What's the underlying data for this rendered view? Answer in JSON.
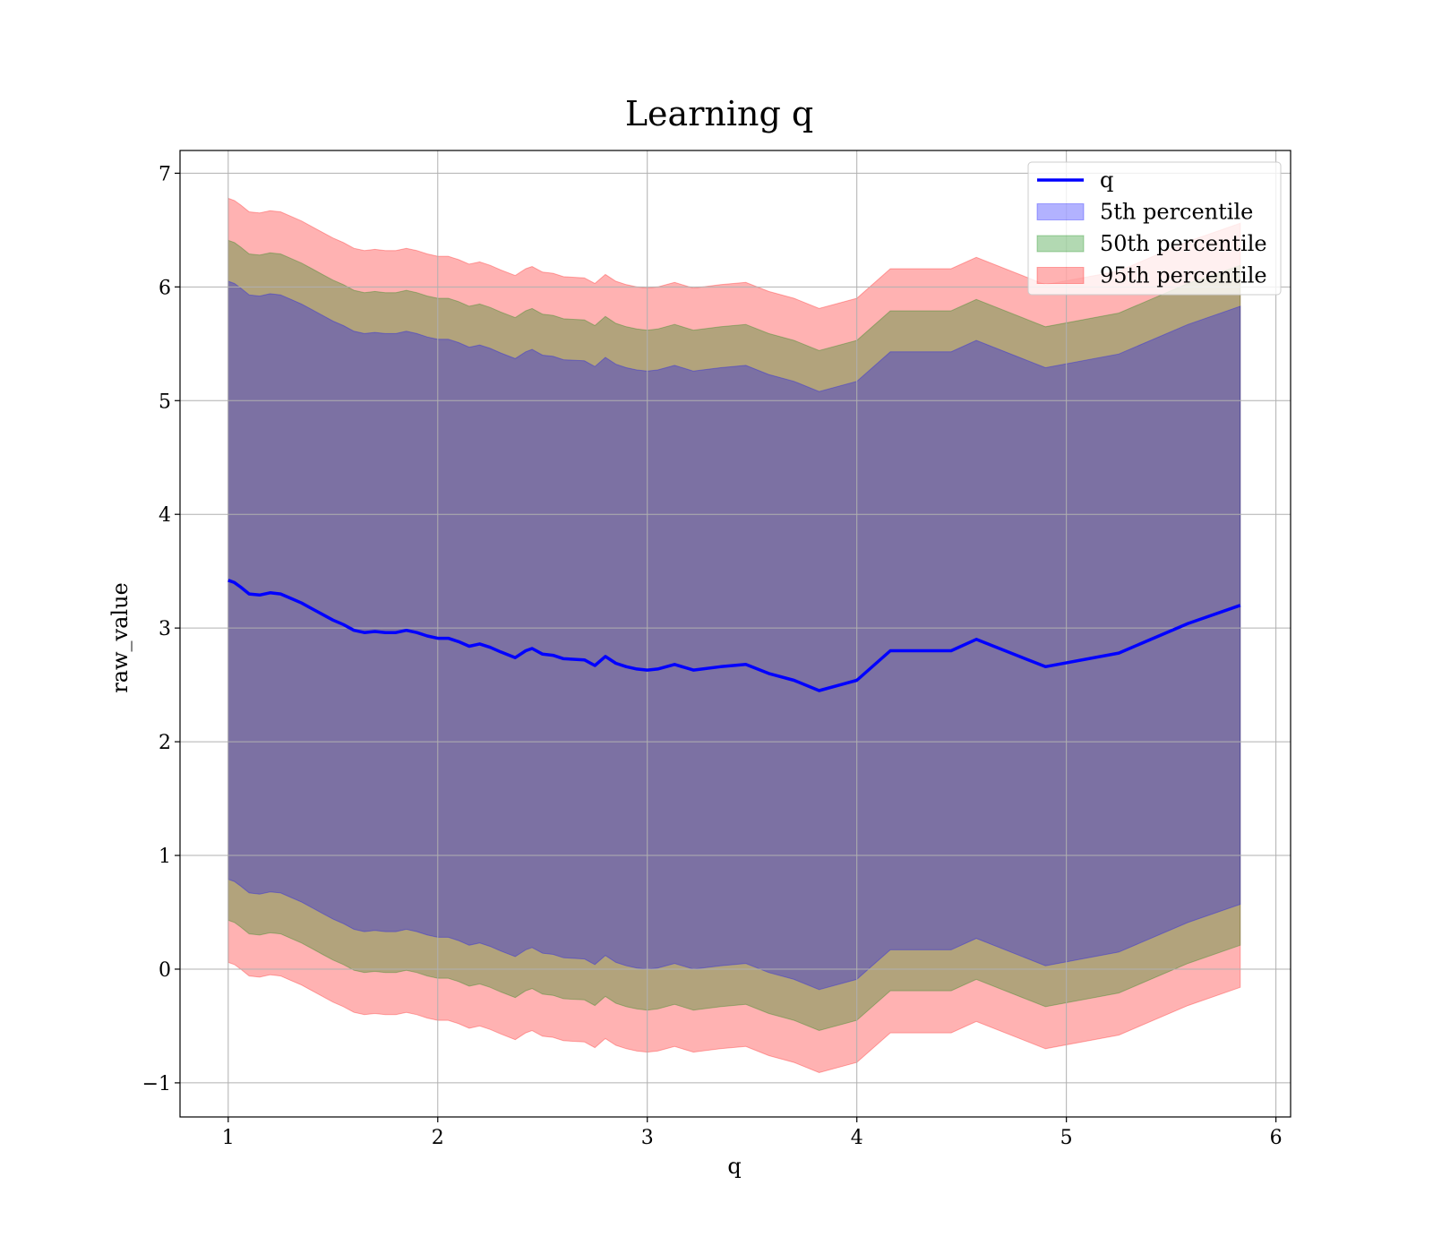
{
  "chart_data": {
    "type": "area",
    "title": "Learning q",
    "xlabel": "q",
    "ylabel": "raw_value",
    "xlim": [
      0.77,
      6.07
    ],
    "ylim": [
      -1.3,
      7.2
    ],
    "xticks": [
      1,
      2,
      3,
      4,
      5,
      6
    ],
    "yticks": [
      -1,
      0,
      1,
      2,
      3,
      4,
      5,
      6,
      7
    ],
    "grid": true,
    "legend_position": "top-right",
    "x": [
      1.0,
      1.03,
      1.06,
      1.1,
      1.15,
      1.2,
      1.25,
      1.3,
      1.35,
      1.4,
      1.45,
      1.5,
      1.55,
      1.6,
      1.65,
      1.7,
      1.75,
      1.8,
      1.85,
      1.9,
      1.95,
      2.0,
      2.05,
      2.1,
      2.15,
      2.2,
      2.25,
      2.3,
      2.37,
      2.42,
      2.45,
      2.5,
      2.55,
      2.6,
      2.7,
      2.75,
      2.8,
      2.85,
      2.9,
      2.95,
      3.0,
      3.05,
      3.13,
      3.22,
      3.35,
      3.47,
      3.58,
      3.7,
      3.82,
      4.0,
      4.16,
      4.45,
      4.57,
      4.9,
      5.25,
      5.58,
      5.83
    ],
    "median": [
      3.42,
      3.4,
      3.36,
      3.3,
      3.29,
      3.31,
      3.3,
      3.26,
      3.22,
      3.17,
      3.12,
      3.07,
      3.03,
      2.98,
      2.96,
      2.97,
      2.96,
      2.96,
      2.98,
      2.96,
      2.93,
      2.91,
      2.91,
      2.88,
      2.84,
      2.86,
      2.83,
      2.79,
      2.74,
      2.8,
      2.82,
      2.77,
      2.76,
      2.73,
      2.72,
      2.67,
      2.75,
      2.69,
      2.66,
      2.64,
      2.63,
      2.64,
      2.68,
      2.63,
      2.66,
      2.68,
      2.6,
      2.54,
      2.45,
      2.54,
      2.8,
      2.8,
      2.9,
      2.66,
      2.78,
      3.04,
      3.2
    ],
    "series": [
      {
        "name": "q",
        "role": "line",
        "color": "#0000ff"
      },
      {
        "name": "5th percentile",
        "color": "#0000ff",
        "lower_offset": -2.63,
        "upper_offset": 2.63
      },
      {
        "name": "50th percentile",
        "color": "#008000",
        "lower_offset": -2.99,
        "upper_offset": 2.99
      },
      {
        "name": "95th percentile",
        "color": "#ff0000",
        "lower_offset": -3.36,
        "upper_offset": 3.36
      }
    ]
  }
}
